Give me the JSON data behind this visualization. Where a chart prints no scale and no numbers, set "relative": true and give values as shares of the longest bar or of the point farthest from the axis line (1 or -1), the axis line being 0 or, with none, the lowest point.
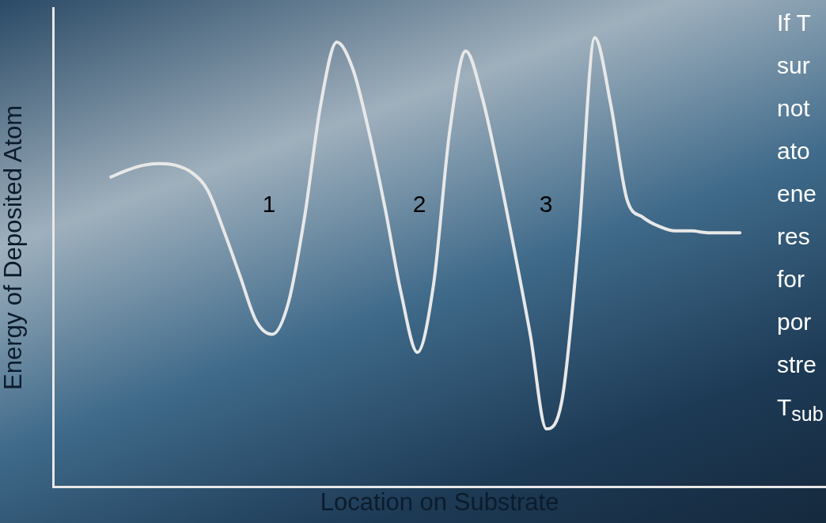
{
  "chart_data": {
    "type": "line",
    "relative": true,
    "xlabel": "Location on Substrate",
    "ylabel": "Energy of Deposited Atom",
    "categories": [
      null,
      null,
      null,
      null,
      null,
      null,
      null,
      null,
      null,
      null,
      null,
      null,
      null,
      null,
      null,
      null,
      null,
      null,
      null,
      null,
      null,
      null,
      null,
      null,
      null,
      null,
      null,
      null,
      null,
      null,
      null,
      null,
      null,
      null,
      null,
      null,
      null,
      null,
      null,
      null
    ],
    "series": [
      {
        "color": "#e8e8e8",
        "values": [
          0.69,
          0.705,
          0.716,
          0.72,
          0.716,
          0.7,
          0.66,
          0.57,
          0.47,
          0.37,
          0.34,
          0.41,
          0.6,
          0.85,
          0.99,
          0.93,
          0.79,
          0.62,
          0.43,
          0.3,
          0.45,
          0.79,
          0.97,
          0.87,
          0.71,
          0.53,
          0.34,
          0.13,
          0.2,
          0.55,
          1.0,
          0.85,
          0.64,
          0.6,
          0.58,
          0.57,
          0.57,
          0.566,
          0.566,
          0.566
        ]
      }
    ],
    "marker": "none",
    "grid": false,
    "legend": false,
    "annotations": [
      "1",
      "2",
      "3",
      "If T",
      "sur",
      "not",
      "ato",
      "ene",
      "res",
      "for",
      "por",
      "stre",
      "T$_{sub}$"
    ]
  }
}
